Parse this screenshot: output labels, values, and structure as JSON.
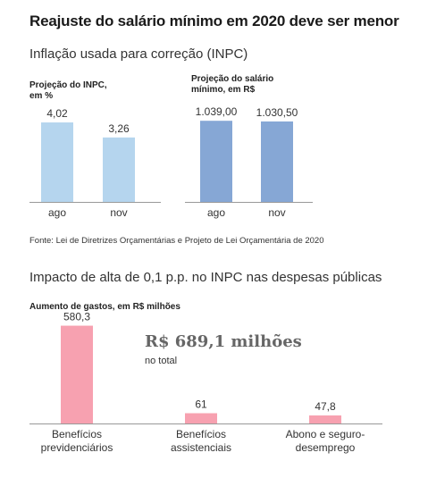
{
  "header": {
    "title": "Reajuste do salário mínimo em 2020 deve ser menor",
    "subtitle1": "Inflação usada para correção (INPC)",
    "source": "Fonte: Lei de Diretrizes Orçamentárias e Projeto de Lei Orçamentária de 2020",
    "subtitle2": "Impacto de alta de 0,1 p.p. no INPC nas despesas públicas"
  },
  "total": {
    "value": "R$ 689,1 milhões",
    "label": "no total"
  },
  "chart_data": [
    {
      "type": "bar",
      "label_line1": "Projeção do INPC,",
      "label_line2": "em %",
      "categories": [
        "ago",
        "nov"
      ],
      "values": [
        4.02,
        3.26
      ],
      "value_labels": [
        "4,02",
        "3,26"
      ],
      "ylim": [
        0,
        4.7
      ],
      "color": "#b5d5ee"
    },
    {
      "type": "bar",
      "label_line1": "Projeção do salário",
      "label_line2": "mínimo, em R$",
      "categories": [
        "ago",
        "nov"
      ],
      "values": [
        1039.0,
        1030.5
      ],
      "value_labels": [
        "1.039,00",
        "1.030,50"
      ],
      "ylim": [
        0,
        1190
      ],
      "color": "#86a7d5"
    },
    {
      "type": "bar",
      "label_line1": "Aumento de gastos, em R$ milhões",
      "label_line2": "",
      "categories": [
        [
          "Benefícios",
          "previdenciários"
        ],
        [
          "Benefícios",
          "assistenciais"
        ],
        [
          "Abono e seguro-",
          "desemprego"
        ]
      ],
      "values": [
        580.3,
        61,
        47.8
      ],
      "value_labels": [
        "580,3",
        "61",
        "47,8"
      ],
      "ylim": [
        0,
        615
      ],
      "color": "#f7a1b0"
    }
  ]
}
